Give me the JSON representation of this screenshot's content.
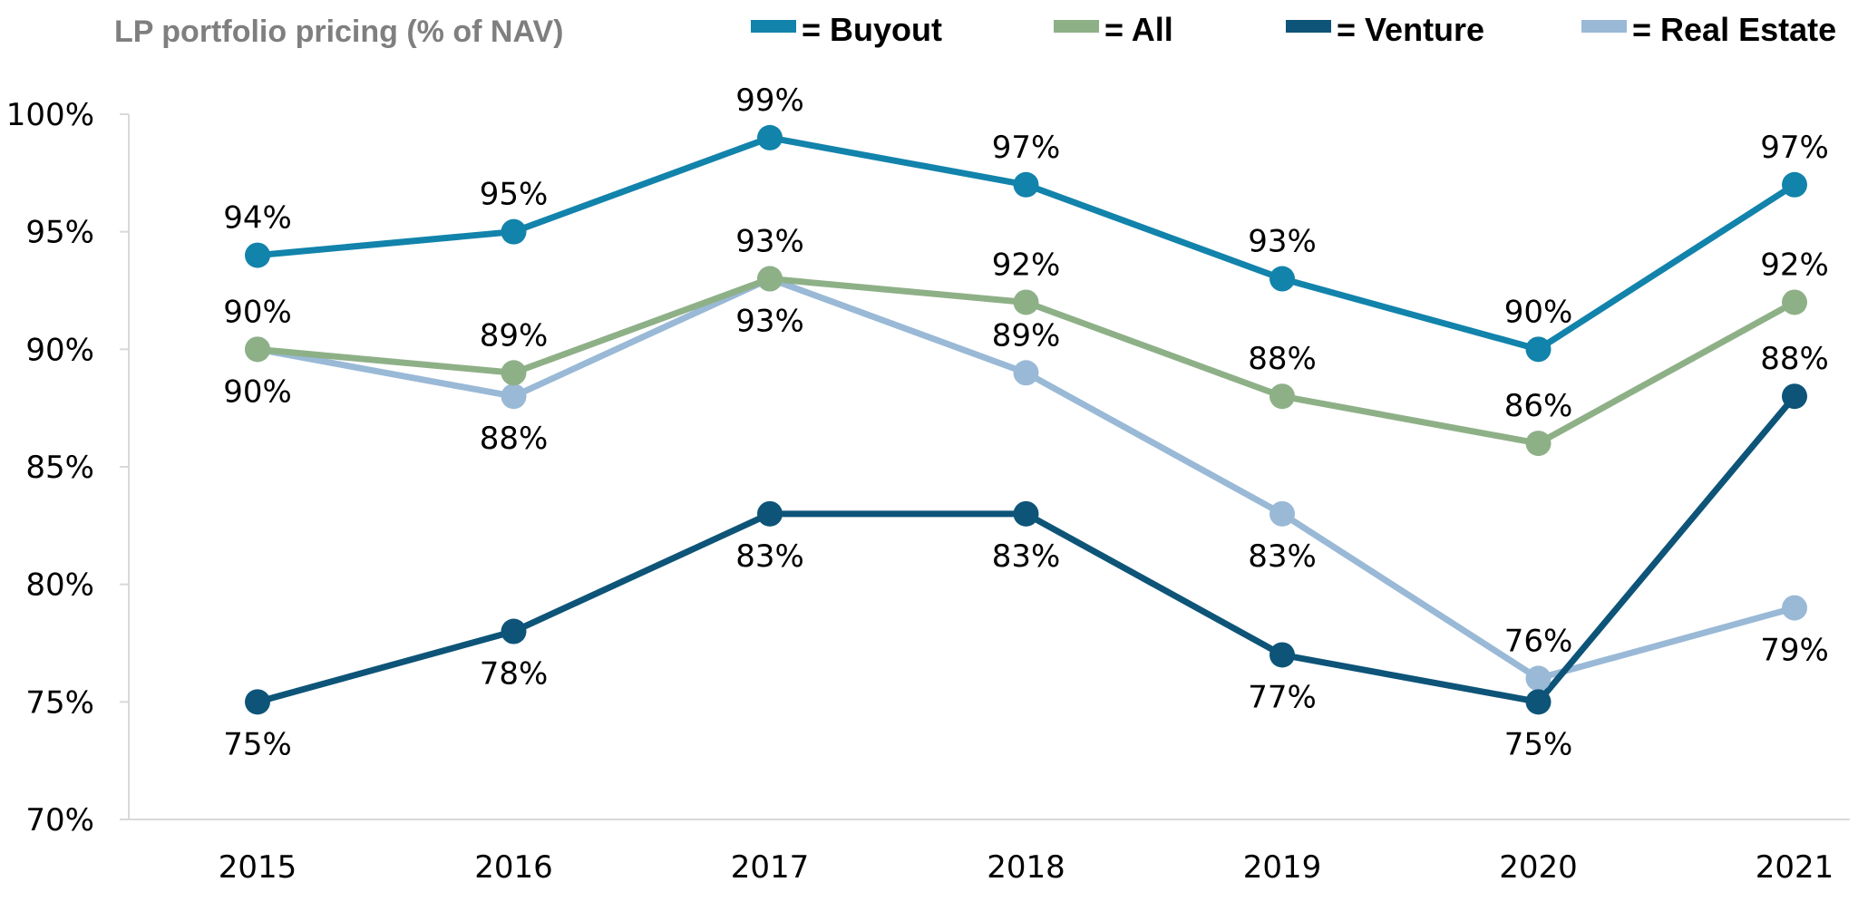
{
  "chart_data": {
    "type": "line",
    "title": "LP portfolio pricing (% of NAV)",
    "xlabel": "",
    "ylabel": "",
    "categories": [
      "2015",
      "2016",
      "2017",
      "2018",
      "2019",
      "2020",
      "2021"
    ],
    "ylim": [
      70,
      100
    ],
    "yticks": [
      70,
      75,
      80,
      85,
      90,
      95,
      100
    ],
    "ytick_labels": [
      "70%",
      "75%",
      "80%",
      "85%",
      "90%",
      "95%",
      "100%"
    ],
    "grid": false,
    "legend_position": "top",
    "series": [
      {
        "name": "Buyout",
        "legend_label": "= Buyout",
        "color": "#1283ab",
        "values": [
          94,
          95,
          99,
          97,
          93,
          90,
          97
        ],
        "labels": [
          "94%",
          "95%",
          "99%",
          "97%",
          "93%",
          "90%",
          "97%"
        ],
        "label_side": [
          "above",
          "above",
          "above",
          "above",
          "above",
          "above",
          "above"
        ]
      },
      {
        "name": "All",
        "legend_label": "= All",
        "color": "#8eb087",
        "values": [
          90,
          89,
          93,
          92,
          88,
          86,
          92
        ],
        "labels": [
          "90%",
          "89%",
          "93%",
          "92%",
          "88%",
          "86%",
          "92%"
        ],
        "label_side": [
          "above",
          "above",
          "above",
          "above",
          "above",
          "above",
          "above"
        ]
      },
      {
        "name": "Venture",
        "legend_label": "= Venture",
        "color": "#0d5478",
        "values": [
          75,
          78,
          83,
          83,
          77,
          75,
          88
        ],
        "labels": [
          "75%",
          "78%",
          "83%",
          "83%",
          "77%",
          "75%",
          "88%"
        ],
        "label_side": [
          "below",
          "below",
          "below",
          "below",
          "below",
          "below",
          "above"
        ]
      },
      {
        "name": "Real Estate",
        "legend_label": "= Real Estate",
        "color": "#99b9d6",
        "values": [
          90,
          88,
          93,
          89,
          83,
          76,
          79
        ],
        "labels": [
          "90%",
          "88%",
          "93%",
          "89%",
          "83%",
          "76%",
          "79%"
        ],
        "label_side": [
          "below",
          "below",
          "below",
          "above",
          "below",
          "above",
          "below"
        ]
      }
    ]
  }
}
